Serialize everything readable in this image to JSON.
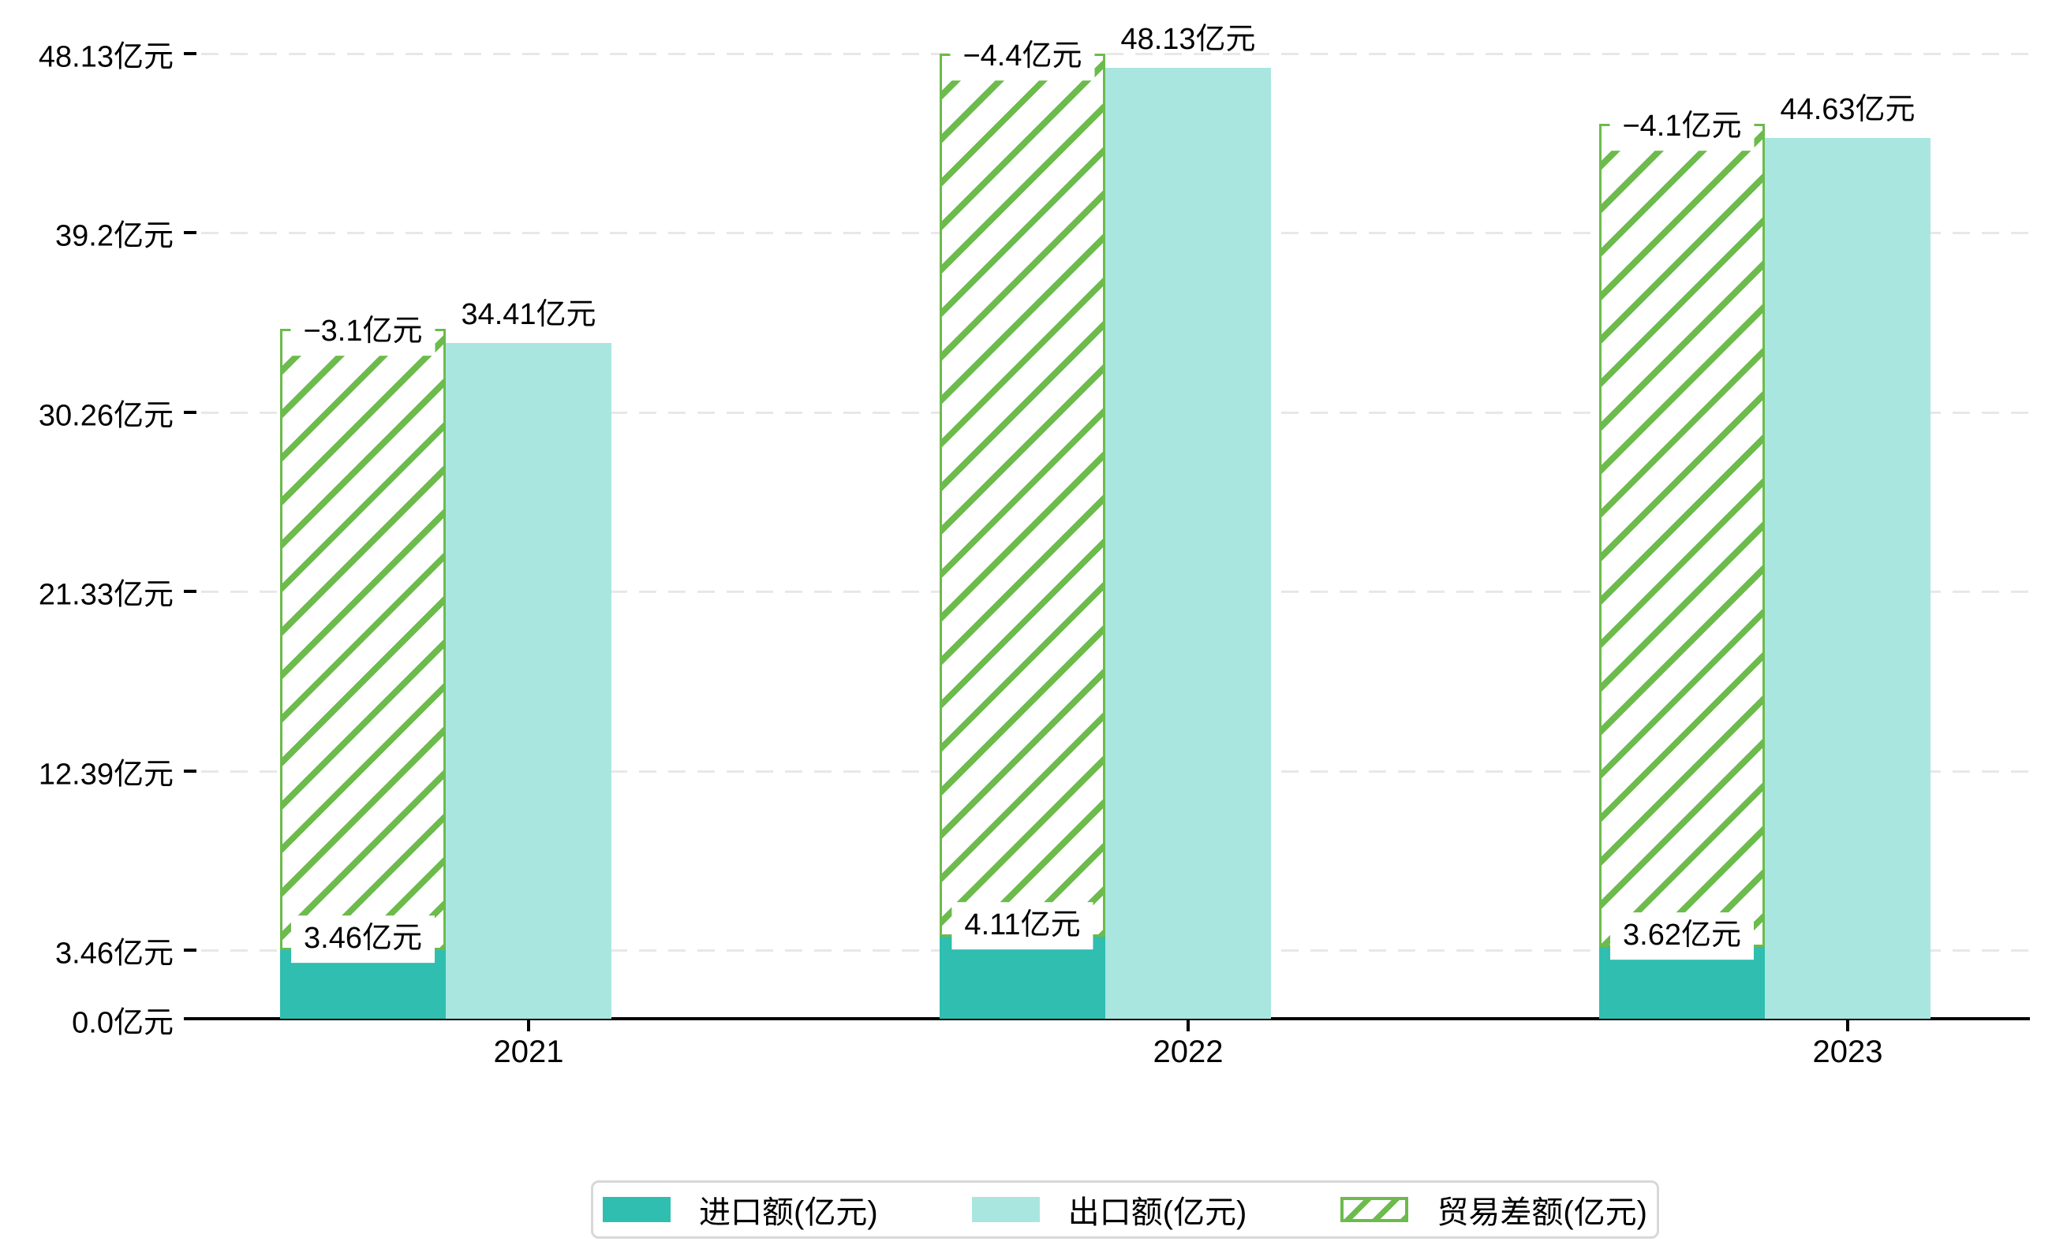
{
  "chart_data": {
    "type": "bar",
    "title": "",
    "categories": [
      "2021",
      "2022",
      "2023"
    ],
    "series": [
      {
        "name": "进口额(亿元)",
        "values": [
          3.46,
          4.11,
          3.62
        ],
        "data_labels": [
          "3.46亿元",
          "4.11亿元",
          "3.62亿元"
        ],
        "color": "#2fbeb0",
        "style": "solid"
      },
      {
        "name": "出口额(亿元)",
        "values": [
          34.41,
          48.13,
          44.63
        ],
        "data_labels": [
          "34.41亿元",
          "48.13亿元",
          "44.63亿元"
        ],
        "color": "#a9e6e0",
        "style": "solid"
      },
      {
        "name": "贸易差额(亿元)",
        "values": [
          -3.1,
          -4.4,
          -4.1
        ],
        "data_labels": [
          "−3.1亿元",
          "−4.4亿元",
          "−4.1亿元"
        ],
        "color": "#6cbb4c",
        "style": "hatched",
        "note": "drawn as white bar with green diagonal hatching, stacked from top of import bar up to export value level"
      }
    ],
    "y_axis": {
      "unit": "亿元",
      "tick_values": [
        0.0,
        3.46,
        12.39,
        21.33,
        30.26,
        39.2,
        48.13
      ],
      "tick_labels": [
        "0.0亿元",
        "3.46亿元",
        "12.39亿元",
        "21.33亿元",
        "30.26亿元",
        "39.2亿元",
        "48.13亿元"
      ],
      "range": [
        0,
        48.13
      ]
    },
    "x_axis": {
      "tick_labels": [
        "2021",
        "2022",
        "2023"
      ]
    },
    "grid": "dashed-horizontal",
    "legend": {
      "position": "bottom",
      "entries": [
        "进口额(亿元)",
        "出口额(亿元)",
        "贸易差额(亿元)"
      ]
    }
  },
  "colors": {
    "import_bar": "#2fbeb0",
    "export_bar": "#a9e6e0",
    "balance_hatch": "#6cbb4c",
    "gridline": "#e8e8e8",
    "axis": "#000000",
    "legend_border": "#d8d8d8",
    "background": "#ffffff",
    "text": "#000000"
  }
}
